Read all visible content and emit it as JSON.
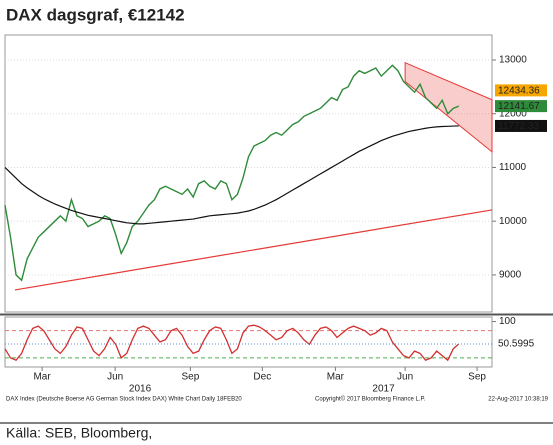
{
  "chart_data": {
    "type": "line",
    "title": "DAX dagsgraf, €12142",
    "x": [
      0,
      1,
      2,
      3,
      4,
      5,
      6,
      7,
      8,
      9,
      10,
      11,
      12,
      13,
      14,
      15,
      16,
      17,
      18,
      19,
      20,
      21,
      22,
      23,
      24,
      25,
      26,
      27,
      28,
      29,
      30,
      31,
      32,
      33,
      34,
      35,
      36,
      37,
      38,
      39,
      40,
      41,
      42,
      43,
      44,
      45,
      46,
      47,
      48,
      49,
      50,
      51,
      52,
      53,
      54,
      55,
      56,
      57,
      58,
      59,
      60,
      61,
      62,
      63,
      64,
      65,
      66,
      67,
      68,
      69,
      70,
      71,
      72,
      73,
      74,
      75,
      76,
      77,
      78,
      79,
      80,
      81,
      82
    ],
    "xlim": [
      0,
      88
    ],
    "xticks": [
      {
        "value": 6.7,
        "label": "Mar"
      },
      {
        "value": 19.9,
        "label": "Jun"
      },
      {
        "value": 33.5,
        "label": "Sep"
      },
      {
        "value": 46.5,
        "label": "Dec"
      },
      {
        "value": 59.7,
        "label": "Mar"
      },
      {
        "value": 72.3,
        "label": "Jun"
      },
      {
        "value": 85.3,
        "label": "Sep"
      }
    ],
    "year_labels": [
      {
        "value": 24.4,
        "label": "2016"
      },
      {
        "value": 68.4,
        "label": "2017"
      }
    ],
    "ylim": [
      8310,
      13465
    ],
    "yticks": [
      9000,
      10000,
      11000,
      12000,
      13000
    ],
    "series": [
      {
        "color": "#2e8b3a",
        "values": [
          10300,
          9700,
          9000,
          8900,
          9300,
          9500,
          9700,
          9800,
          9900,
          10000,
          10100,
          10000,
          10400,
          10100,
          10050,
          9900,
          9950,
          10000,
          10100,
          10050,
          9750,
          9400,
          9600,
          9900,
          10000,
          10150,
          10300,
          10400,
          10600,
          10650,
          10600,
          10550,
          10500,
          10600,
          10450,
          10700,
          10750,
          10650,
          10600,
          10750,
          10700,
          10400,
          10500,
          10800,
          11200,
          11400,
          11450,
          11500,
          11600,
          11650,
          11600,
          11700,
          11800,
          11850,
          11950,
          12000,
          12050,
          12100,
          12200,
          12300,
          12250,
          12450,
          12500,
          12700,
          12800,
          12750,
          12800,
          12850,
          12700,
          12800,
          12900,
          12800,
          12600,
          12500,
          12400,
          12550,
          12300,
          12200,
          12100,
          12250,
          12000,
          12100,
          12141.67
        ]
      },
      {
        "color": "#111111",
        "values": [
          11000,
          10900,
          10800,
          10700,
          10620,
          10550,
          10480,
          10420,
          10370,
          10320,
          10280,
          10240,
          10200,
          10170,
          10140,
          10110,
          10090,
          10070,
          10050,
          10030,
          10010,
          9990,
          9970,
          9960,
          9950,
          9950,
          9960,
          9970,
          9980,
          9990,
          10000,
          10010,
          10020,
          10030,
          10040,
          10060,
          10080,
          10100,
          10110,
          10120,
          10130,
          10140,
          10150,
          10170,
          10190,
          10220,
          10260,
          10300,
          10350,
          10400,
          10460,
          10520,
          10580,
          10640,
          10700,
          10760,
          10820,
          10880,
          10940,
          11000,
          11060,
          11120,
          11180,
          11240,
          11300,
          11350,
          11400,
          11450,
          11500,
          11540,
          11580,
          11610,
          11640,
          11670,
          11690,
          11710,
          11730,
          11745,
          11755,
          11762,
          11766,
          11770,
          11772.33
        ]
      }
    ],
    "tags": [
      {
        "value": 12434.36,
        "color": "#f7a600"
      }
    ],
    "trendlines": [
      {
        "x": [
          1.8,
          88
        ],
        "values": [
          8720,
          10210
        ],
        "color": "#e53935"
      }
    ],
    "channel": {
      "x": [
        72.3,
        88
      ],
      "upper": [
        12950,
        12260
      ],
      "lower": [
        12600,
        11290
      ],
      "color": "#e53935"
    },
    "oscillator": {
      "values": [
        40,
        20,
        15,
        30,
        60,
        85,
        90,
        80,
        60,
        40,
        30,
        45,
        70,
        88,
        85,
        60,
        35,
        25,
        40,
        65,
        50,
        20,
        30,
        60,
        85,
        90,
        85,
        70,
        55,
        60,
        80,
        85,
        70,
        45,
        30,
        35,
        60,
        80,
        88,
        85,
        60,
        30,
        40,
        75,
        90,
        92,
        88,
        80,
        70,
        60,
        65,
        80,
        85,
        75,
        60,
        50,
        70,
        85,
        88,
        80,
        65,
        75,
        85,
        90,
        85,
        80,
        70,
        75,
        85,
        80,
        55,
        40,
        25,
        20,
        35,
        30,
        15,
        20,
        35,
        25,
        15,
        40,
        50.5995
      ],
      "ylim": [
        0,
        110
      ],
      "yticks": [
        100
      ],
      "levels": [
        80,
        20
      ],
      "color": "#d32f2f"
    },
    "footer": {
      "left": "DAX Index (Deutsche Boerse AG German Stock Index DAX) White Chart  Daily 18FEB20",
      "center": "Copyright© 2017 Bloomberg Finance L.P.",
      "right": "22-Aug-2017 10:38:19"
    },
    "source": "Källa: SEB, Bloomberg,"
  }
}
